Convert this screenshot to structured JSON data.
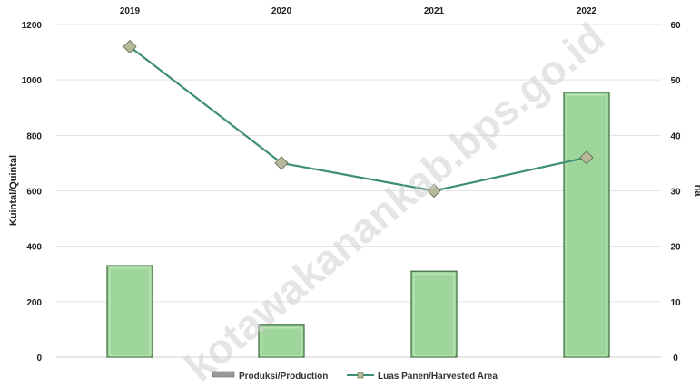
{
  "chart_data": {
    "type": "bar",
    "categories": [
      "2019",
      "2020",
      "2021",
      "2022"
    ],
    "x_axis_position": "top",
    "series": [
      {
        "name": "Produksi/Production",
        "kind": "bar",
        "axis": "left",
        "values": [
          330,
          115,
          310,
          955
        ]
      },
      {
        "name": "Luas Panen/Harvested Area",
        "kind": "line",
        "axis": "right",
        "values": [
          56,
          35,
          30,
          36
        ]
      }
    ],
    "ylabel": "Kuintal/Quintal",
    "ylim": [
      0,
      1200
    ],
    "yticks": [
      "0",
      "200",
      "400",
      "600",
      "800",
      "1000",
      "1200"
    ],
    "y2label": "ha",
    "y2lim": [
      0,
      60
    ],
    "y2ticks": [
      "0",
      "10",
      "20",
      "30",
      "40",
      "50",
      "60"
    ],
    "grid": true,
    "legend_position": "bottom",
    "watermark": "kotawakanankab.bps.go.id",
    "colors": {
      "bar_fill": "#9ed59a",
      "bar_stroke": "#3a6b3a",
      "line": "#3f8f72",
      "marker": "#b8b89a",
      "grid": "#e3e3e3"
    }
  }
}
